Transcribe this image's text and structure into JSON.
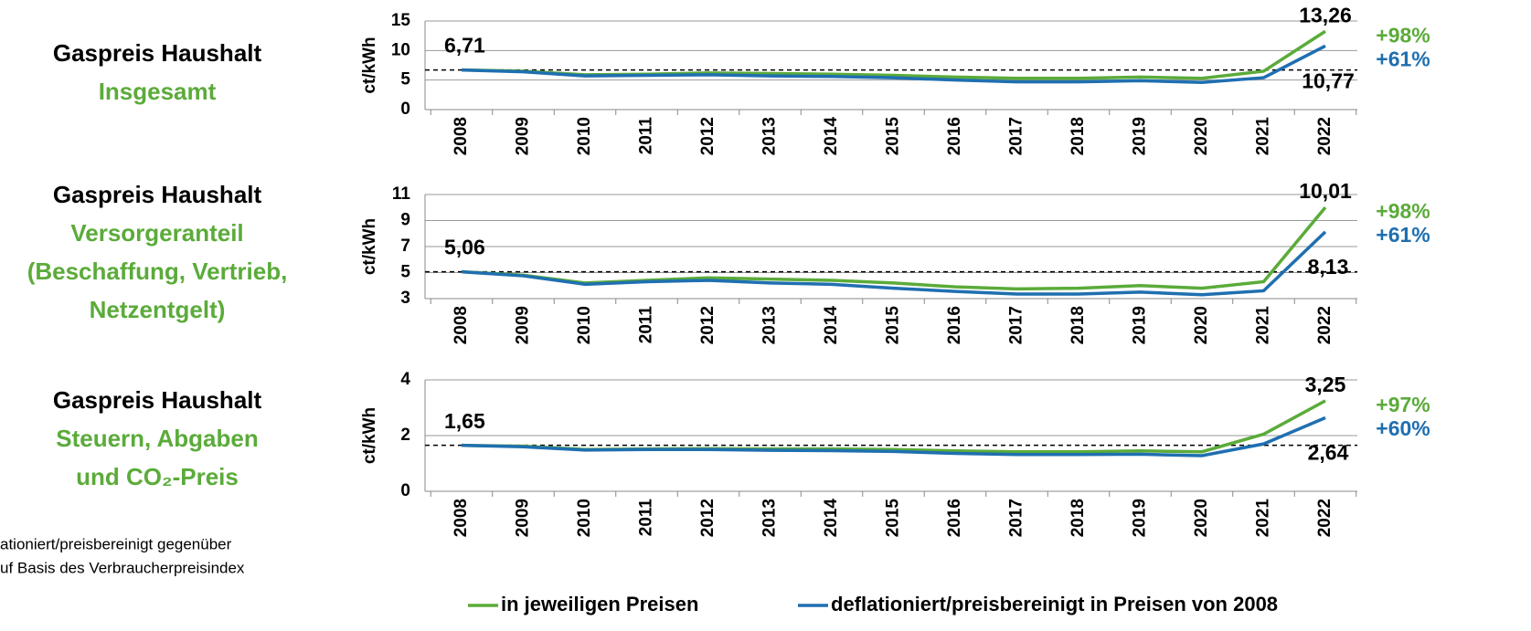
{
  "chart_data": [
    {
      "type": "line",
      "title": "Gaspreis Haushalt",
      "subtitle": [
        "Insgesamt"
      ],
      "y_label": "ct/kWh",
      "categories": [
        "2008",
        "2009",
        "2010",
        "2011",
        "2012",
        "2013",
        "2014",
        "2015",
        "2016",
        "2017",
        "2018",
        "2019",
        "2020",
        "2021",
        "2022"
      ],
      "ylim": [
        0,
        15
      ],
      "yticks": [
        0,
        5,
        10,
        15
      ],
      "grid": true,
      "series": [
        {
          "name": "in jeweiligen Preisen",
          "color": "#5bab3a",
          "values": [
            6.71,
            6.5,
            5.9,
            6.0,
            6.2,
            6.1,
            6.0,
            5.8,
            5.5,
            5.3,
            5.3,
            5.5,
            5.3,
            6.5,
            13.26
          ],
          "value_labels": [
            "6,71",
            null,
            null,
            null,
            null,
            null,
            null,
            null,
            null,
            null,
            null,
            null,
            null,
            null,
            "13,26"
          ]
        },
        {
          "name": "deflationiert/preisbereinigt in Preisen von 2008",
          "color": "#1f6fb0",
          "values": [
            6.71,
            6.4,
            5.7,
            5.8,
            5.9,
            5.7,
            5.6,
            5.4,
            5.0,
            4.7,
            4.7,
            4.9,
            4.6,
            5.4,
            10.77
          ],
          "value_labels": [
            null,
            null,
            null,
            null,
            null,
            null,
            null,
            null,
            null,
            null,
            null,
            null,
            null,
            null,
            "10,77"
          ]
        }
      ],
      "annotations": [
        "+98%",
        "+61%"
      ]
    },
    {
      "type": "line",
      "title": "Gaspreis Haushalt",
      "subtitle": [
        "Versorgeranteil",
        "(Beschaffung, Vertrieb,",
        "Netzentgelt)"
      ],
      "y_label": "ct/kWh",
      "categories": [
        "2008",
        "2009",
        "2010",
        "2011",
        "2012",
        "2013",
        "2014",
        "2015",
        "2016",
        "2017",
        "2018",
        "2019",
        "2020",
        "2021",
        "2022"
      ],
      "ylim": [
        3,
        11
      ],
      "yticks": [
        3,
        5,
        7,
        9,
        11
      ],
      "grid": true,
      "series": [
        {
          "name": "in jeweiligen Preisen",
          "color": "#5bab3a",
          "values": [
            5.06,
            4.8,
            4.2,
            4.4,
            4.6,
            4.5,
            4.4,
            4.2,
            3.9,
            3.75,
            3.8,
            4.0,
            3.8,
            4.3,
            10.01
          ],
          "value_labels": [
            "5,06",
            null,
            null,
            null,
            null,
            null,
            null,
            null,
            null,
            null,
            null,
            null,
            null,
            null,
            "10,01"
          ]
        },
        {
          "name": "deflationiert/preisbereinigt in Preisen von 2008",
          "color": "#1f6fb0",
          "values": [
            5.06,
            4.75,
            4.1,
            4.3,
            4.4,
            4.2,
            4.1,
            3.8,
            3.55,
            3.35,
            3.35,
            3.5,
            3.3,
            3.6,
            8.13
          ],
          "value_labels": [
            null,
            null,
            null,
            null,
            null,
            null,
            null,
            null,
            null,
            null,
            null,
            null,
            null,
            null,
            "8,13"
          ]
        }
      ],
      "annotations": [
        "+98%",
        "+61%"
      ]
    },
    {
      "type": "line",
      "title": "Gaspreis Haushalt",
      "subtitle": [
        "Steuern, Abgaben",
        "und CO₂-Preis"
      ],
      "y_label": "ct/kWh",
      "categories": [
        "2008",
        "2009",
        "2010",
        "2011",
        "2012",
        "2013",
        "2014",
        "2015",
        "2016",
        "2017",
        "2018",
        "2019",
        "2020",
        "2021",
        "2022"
      ],
      "ylim": [
        0,
        4
      ],
      "yticks": [
        0,
        2,
        4
      ],
      "grid": true,
      "series": [
        {
          "name": "in jeweiligen Preisen",
          "color": "#5bab3a",
          "values": [
            1.65,
            1.62,
            1.5,
            1.52,
            1.53,
            1.52,
            1.52,
            1.5,
            1.45,
            1.42,
            1.42,
            1.45,
            1.42,
            2.05,
            3.25
          ],
          "value_labels": [
            "1,65",
            null,
            null,
            null,
            null,
            null,
            null,
            null,
            null,
            null,
            null,
            null,
            null,
            null,
            "3,25"
          ]
        },
        {
          "name": "deflationiert/preisbereinigt in Preisen von 2008",
          "color": "#1f6fb0",
          "values": [
            1.65,
            1.6,
            1.48,
            1.5,
            1.5,
            1.47,
            1.46,
            1.43,
            1.36,
            1.32,
            1.32,
            1.33,
            1.28,
            1.7,
            2.64
          ],
          "value_labels": [
            null,
            null,
            null,
            null,
            null,
            null,
            null,
            null,
            null,
            null,
            null,
            null,
            null,
            null,
            "2,64"
          ]
        }
      ],
      "annotations": [
        "+97%",
        "+60%"
      ]
    }
  ],
  "footnote": [
    "ationiert/preisbereinigt gegenüber",
    "uf Basis des Verbraucherpreisindex"
  ]
}
